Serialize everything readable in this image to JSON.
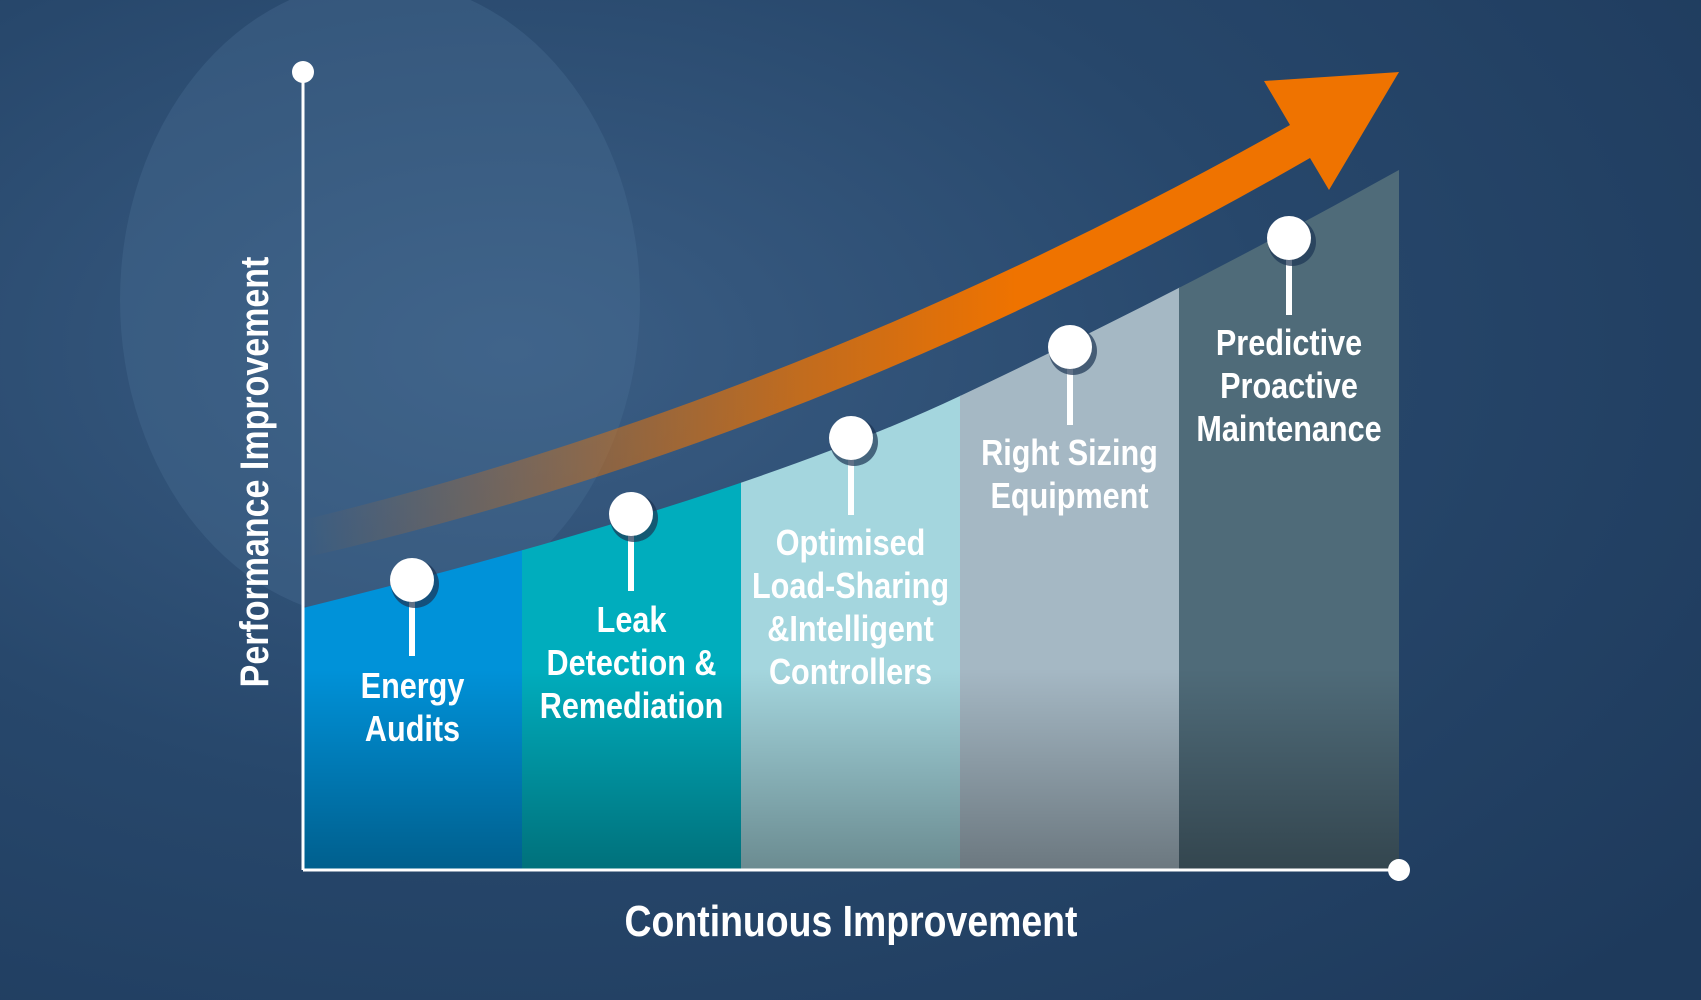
{
  "y_axis_label": "Performance Improvement",
  "x_axis_label": "Continuous Improvement",
  "steps": [
    {
      "lines": [
        "Energy",
        "Audits"
      ],
      "color": "#0092d9"
    },
    {
      "lines": [
        "Leak",
        "Detection &",
        "Remediation"
      ],
      "color": "#00adbd"
    },
    {
      "lines": [
        "Optimised",
        "Load-Sharing",
        "&Intelligent",
        "Controllers"
      ],
      "color": "#a4d6de"
    },
    {
      "lines": [
        "Right Sizing",
        "Equipment"
      ],
      "color": "#a5b8c4"
    },
    {
      "lines": [
        "Predictive",
        "Proactive",
        "Maintenance"
      ],
      "color": "#4f6b79"
    }
  ],
  "colors": {
    "background": "#264566",
    "arrow": "#ef7300",
    "axis": "#ffffff"
  }
}
